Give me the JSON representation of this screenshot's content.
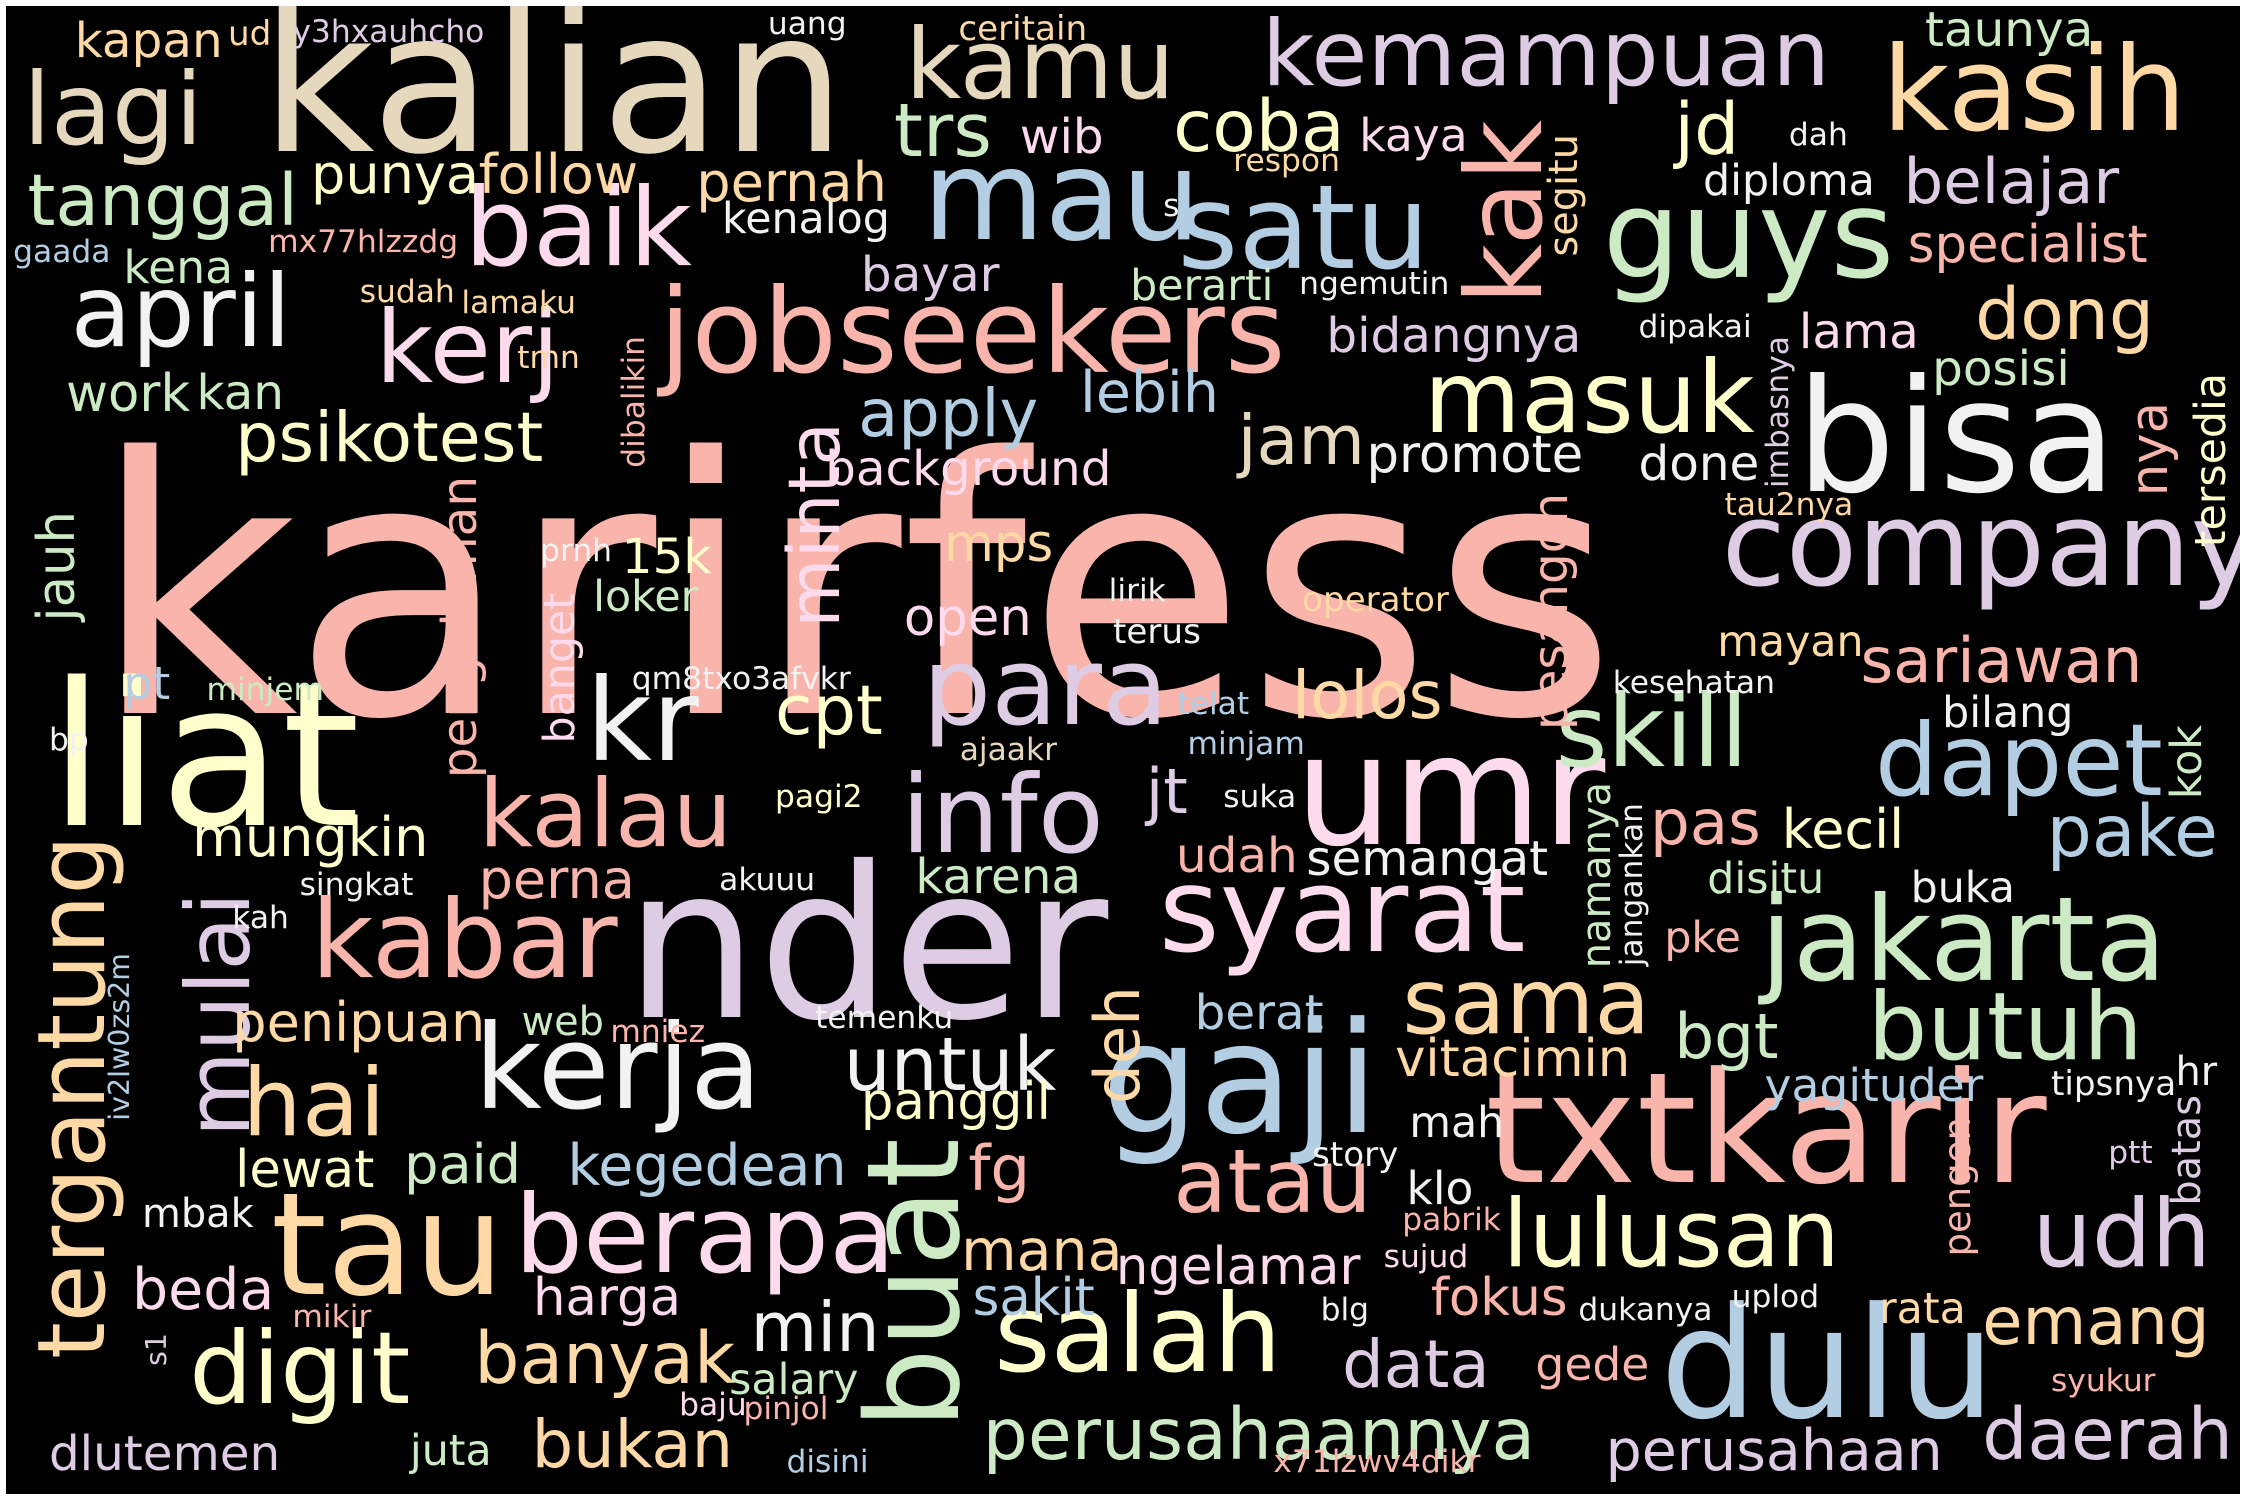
{
  "palette": {
    "pink": "#f9b4ab",
    "lavender": "#decbe4",
    "blue": "#b3cde3",
    "green": "#ccebc5",
    "yellow": "#ffffcc",
    "peach": "#fed9a6",
    "tan": "#e5d8bd",
    "rose": "#fddaec",
    "white": "#f2f2f2"
  },
  "words": [
    "karirfess",
    "kalian",
    "liat",
    "nder",
    "txtkarir",
    "bisa",
    "jobseekers",
    "kasih",
    "umr",
    "gaji",
    "dulu",
    "tau",
    "mau",
    "satu",
    "guys",
    "syarat",
    "company",
    "kerja",
    "jakarta",
    "kamu",
    "kemampuan",
    "baik",
    "para",
    "kabar",
    "berapa",
    "buat",
    "salah",
    "info",
    "kr",
    "april",
    "skill",
    "dapet",
    "lagi",
    "masuk",
    "tergantung",
    "digit",
    "mulai",
    "hai",
    "butuh",
    "kalau",
    "udh",
    "lulusan",
    "atau",
    "kak",
    "kerj",
    "sama",
    "perusahaannya",
    "untuk",
    "minta",
    "daerah",
    "banyak",
    "psikotest",
    "tanggal",
    "trs",
    "jd",
    "coba",
    "belajar",
    "dong",
    "pake",
    "sariawan",
    "emang",
    "data",
    "apply",
    "cpt",
    "bukan",
    "lolos",
    "perusahaan",
    "jam",
    "min",
    "lebih",
    "kegedean",
    "bgt",
    "deh",
    "pas",
    "fg",
    "penipuan",
    "mana",
    "mungkin",
    "vitacimin",
    "panggil",
    "follow",
    "punya",
    "pernah",
    "paid",
    "lewat",
    "beda",
    "harga",
    "sakit",
    "ngelamar",
    "promote",
    "background",
    "fokus",
    "jt",
    "udah",
    "kecil",
    "perna",
    "karena",
    "semangat",
    "pesangon",
    "pengalaman",
    "open",
    "mps",
    "berat",
    "bidangnya",
    "dlutemen",
    "specialist",
    "posisi",
    "mayan",
    "jauh",
    "work",
    "done",
    "lama",
    "tersedia",
    "nya",
    "wib",
    "yagituder",
    "banget",
    "kena",
    "kan",
    "bayar",
    "berarti",
    "kenalog",
    "kaya",
    "diploma",
    "kapan",
    "taunya",
    "salary",
    "juta",
    "15k",
    "loker",
    "disitu",
    "buka",
    "bilang",
    "kok",
    "pt",
    "mbak",
    "web",
    "namanya",
    "kesehatan",
    "pengen",
    "batas",
    "hr",
    "klo",
    "mah",
    "ceritain",
    "segitu",
    "pke",
    "rata",
    "gede",
    "uang",
    "tipsnya",
    "ptt",
    "story",
    "pabrik",
    "sujud",
    "dukanya",
    "uplod",
    "syukur",
    "baju",
    "pinjol",
    "disini",
    "mikir",
    "blg",
    "temenku",
    "mniez",
    "jangankan",
    "singkat",
    "akuuu",
    "pagi2",
    "ajaakr",
    "minjam",
    "suka",
    "telat",
    "operator",
    "terus",
    "lirik",
    "qm8txo3afvkr",
    "prnh",
    "tmn",
    "dibalikin",
    "imbasnya",
    "tau2nya",
    "dipakai",
    "ngemutin",
    "sudah",
    "lamaku",
    "mx77hlzzdg",
    "gaada",
    "respon",
    "dah",
    "y3hxauhcho",
    "ud",
    "s",
    "minjem",
    "kah",
    "s1",
    "iv2lw0zs2m",
    "bp",
    "x71lzwv4dikr"
  ]
}
